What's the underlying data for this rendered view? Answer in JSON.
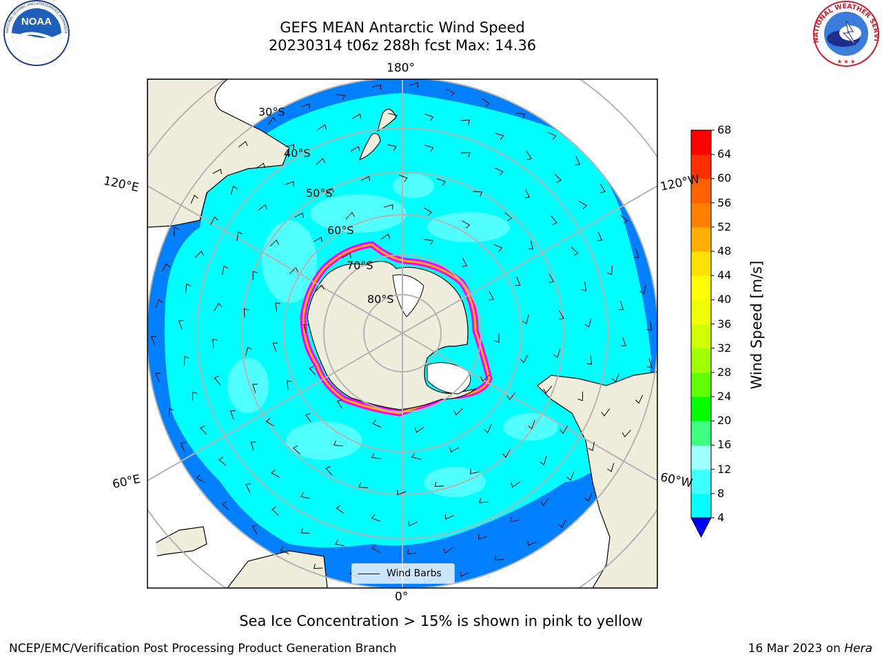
{
  "header": {
    "title_line1": "GEFS MEAN Antarctic Wind Speed",
    "title_line2": "20230314 t06z 288h fcst   Max: 14.36"
  },
  "logos": {
    "noaa_text": "NOAA",
    "noaa_ring": "NATIONAL OCEANIC AND ATMOSPHERIC ADMINISTRATION · U.S. DEPARTMENT OF COMMERCE",
    "nws_ring": "NATIONAL WEATHER SERVICE"
  },
  "map": {
    "projection": "south-polar-stereographic",
    "longitude_labels": {
      "top": "180°",
      "bottom": "0°",
      "left_upper": "120°E",
      "left_lower": "60°E",
      "right_upper": "120°W",
      "right_lower": "60°W"
    },
    "latitude_labels": [
      "30°S",
      "40°S",
      "50°S",
      "60°S",
      "70°S",
      "80°S"
    ],
    "legend_label": "Wind Barbs",
    "colors": {
      "ocean_low": "#0080ff",
      "ocean_mid": "#00ffff",
      "ocean_high": "#66ffff",
      "land": "#efeedc",
      "ice_high": "#ffb000",
      "ice_low": "#ff00ff",
      "graticule": "#b4b4b4"
    }
  },
  "colorbar": {
    "title": "Wind Speed [m/s]",
    "ticks": [
      "4",
      "8",
      "12",
      "16",
      "20",
      "24",
      "28",
      "32",
      "36",
      "40",
      "44",
      "48",
      "52",
      "56",
      "60",
      "64",
      "68"
    ],
    "colors": [
      "#0080ff",
      "#00ffff",
      "#40ffff",
      "#a0ffff",
      "#40ff80",
      "#00ff00",
      "#60ff00",
      "#a0ff00",
      "#d0ff00",
      "#f0ff00",
      "#ffff00",
      "#ffe000",
      "#ffb000",
      "#ff8000",
      "#ff6000",
      "#ff3000",
      "#ff0000"
    ],
    "extend_color": "#0000ff"
  },
  "footer": {
    "caption": "Sea Ice Concentration > 15% is shown in pink to yellow",
    "credit_left": "NCEP/EMC/Verification Post Processing Product Generation Branch",
    "credit_right_text": "16 Mar 2023 on ",
    "credit_right_host": "Hera"
  }
}
